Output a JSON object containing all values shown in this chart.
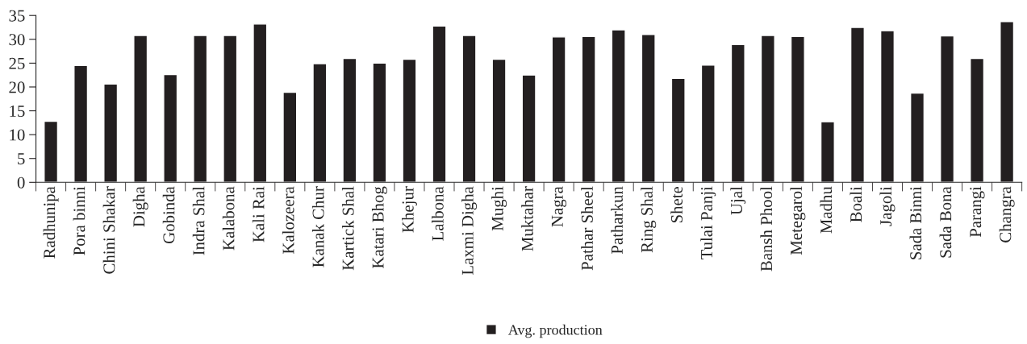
{
  "chart_data": {
    "type": "bar",
    "categories": [
      "Radhunipa",
      "Pora binni",
      "Chini Shakar",
      "Digha",
      "Gobinda",
      "Indra Shal",
      "Kalabona",
      "Kali Rai",
      "Kalozeera",
      "Kanak Chur",
      "Kartick Shal",
      "Katari Bhog",
      "Khejur",
      "Lalbona",
      "Laxmi Digha",
      "Mughi",
      "Muktahar",
      "Nagra",
      "Pathar Sheel",
      "Patharkun",
      "Ring Shal",
      "Shete",
      "Tulai Panji",
      "Ujal",
      "Bansh Phool",
      "Metegarol",
      "Madhu",
      "Boali",
      "Jagoli",
      "Sada Binni",
      "Sada Bona",
      "Parangi",
      "Changra"
    ],
    "series": [
      {
        "name": "Avg. production",
        "color": "#231f20",
        "values": [
          12.8,
          24.5,
          20.6,
          30.8,
          22.6,
          30.8,
          30.8,
          33.2,
          18.9,
          24.9,
          26.0,
          25.0,
          25.8,
          32.8,
          30.8,
          25.8,
          22.5,
          30.5,
          30.6,
          32.0,
          31.0,
          21.8,
          24.6,
          28.9,
          30.8,
          30.6,
          12.7,
          32.5,
          31.8,
          18.7,
          30.7,
          26.0,
          33.7
        ]
      }
    ],
    "ylim": [
      0,
      35
    ],
    "yticks": [
      0,
      5,
      10,
      15,
      20,
      25,
      30,
      35
    ],
    "grid": false,
    "legend": "bottom"
  }
}
